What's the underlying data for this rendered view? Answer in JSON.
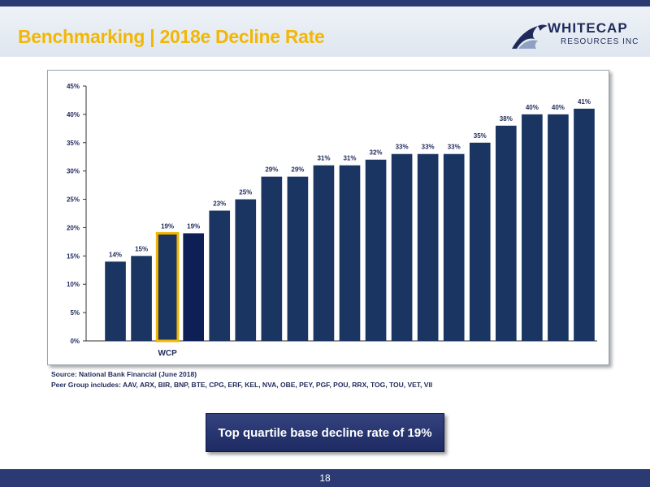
{
  "header": {
    "title": "Benchmarking | 2018e Decline Rate",
    "logo_line1": "WHITECAP",
    "logo_line2": "RESOURCES INC"
  },
  "chart_data": {
    "type": "bar",
    "title": "",
    "xlabel": "",
    "ylabel": "",
    "ylim": [
      0,
      45
    ],
    "yticks": [
      "0%",
      "5%",
      "10%",
      "15%",
      "20%",
      "25%",
      "30%",
      "35%",
      "40%",
      "45%"
    ],
    "grid": false,
    "values": [
      14,
      15,
      19,
      19,
      23,
      25,
      29,
      29,
      31,
      31,
      32,
      33,
      33,
      33,
      35,
      38,
      40,
      40,
      41
    ],
    "value_labels": [
      "14%",
      "15%",
      "19%",
      "19%",
      "23%",
      "25%",
      "29%",
      "29%",
      "31%",
      "31%",
      "32%",
      "33%",
      "33%",
      "33%",
      "35%",
      "38%",
      "40%",
      "40%",
      "41%"
    ],
    "highlight_index": 2,
    "highlight_label": "WCP",
    "colors": {
      "bar": "#1b3563",
      "highlight_bar": "#1b3563",
      "highlight_border": "#f2b705",
      "dark_bar": "#0d1f55",
      "axis": "#333333",
      "text": "#1f2a5c"
    },
    "dark_index": 3
  },
  "source": {
    "line1": "Source: National Bank Financial (June 2018)",
    "line2": "Peer Group includes:  AAV, ARX, BIR, BNP, BTE, CPG, ERF, KEL, NVA, OBE, PEY, PGF, POU, RRX, TOG, TOU, VET, VII"
  },
  "callout": {
    "text": "Top quartile base decline rate of 19%"
  },
  "footer": {
    "page_number": "18"
  },
  "colors": {
    "brand_navy": "#2b3a73",
    "title_gold": "#f2b705"
  }
}
